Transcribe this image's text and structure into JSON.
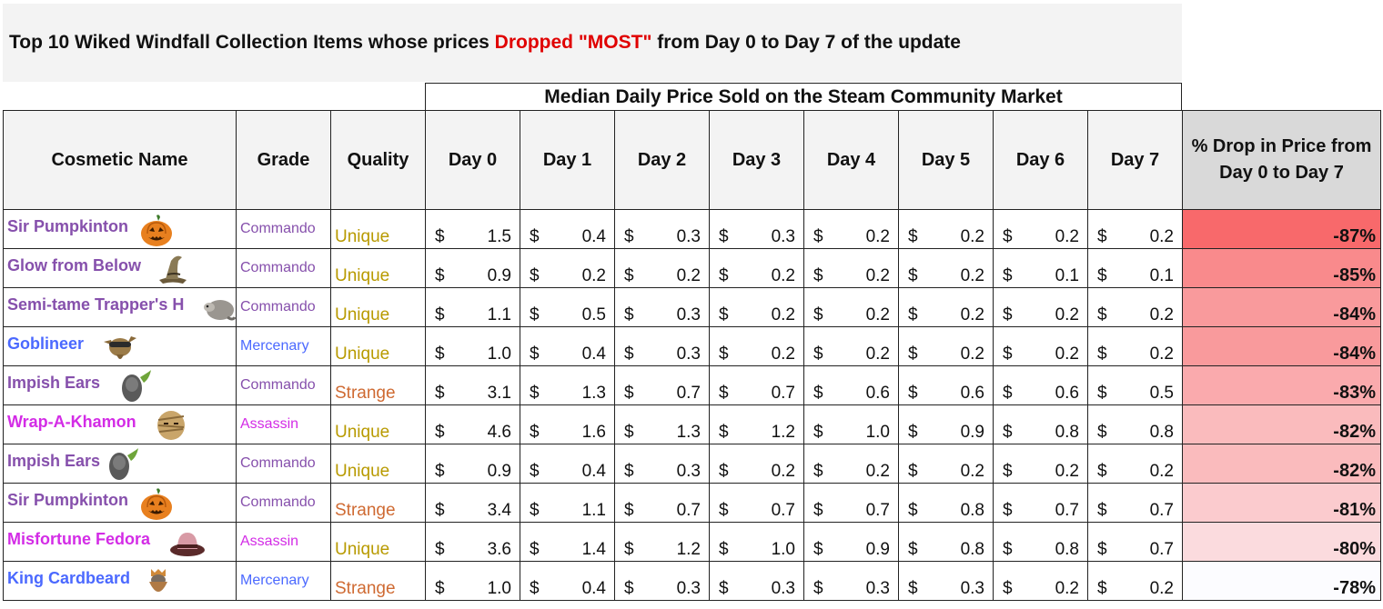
{
  "title": {
    "prefix": "Top 10 Wiked Windfall Collection Items whose prices ",
    "highlight": "Dropped \"MOST\"",
    "suffix": " from Day 0 to Day 7 of the update"
  },
  "group_header": "Median Daily Price Sold on the Steam Community Market",
  "columns": {
    "name": "Cosmetic Name",
    "grade": "Grade",
    "quality": "Quality",
    "days": [
      "Day 0",
      "Day 1",
      "Day 2",
      "Day 3",
      "Day 4",
      "Day 5",
      "Day 6",
      "Day 7"
    ],
    "pct_line1": "% Drop in Price from",
    "pct_line2": "Day 0 to Day 7"
  },
  "currency_symbol": "$",
  "colors": {
    "commando": "#8650ac",
    "assassin": "#d32ce6",
    "mercenary": "#4b69ff",
    "unique": "#b89a00",
    "strange": "#cf6a32",
    "highlight_red": "#e00000",
    "pct_strong": "#f8696b",
    "pct_weak": "#fcfcff"
  },
  "rows": [
    {
      "name": "Sir Pumpkinton",
      "icon": "pumpkin-icon",
      "grade": "Commando",
      "quality": "Unique",
      "prices": [
        "1.5",
        "0.4",
        "0.3",
        "0.3",
        "0.2",
        "0.2",
        "0.2",
        "0.2"
      ],
      "pct": "-87%",
      "pct_value": -87
    },
    {
      "name": "Glow from Below",
      "icon": "witch-hat-icon",
      "grade": "Commando",
      "quality": "Unique",
      "prices": [
        "0.9",
        "0.2",
        "0.2",
        "0.2",
        "0.2",
        "0.2",
        "0.1",
        "0.1"
      ],
      "pct": "-85%",
      "pct_value": -85
    },
    {
      "name": "Semi-tame Trapper's Hat",
      "display_name": "Semi-tame Trapper's H",
      "icon": "raccoon-hat-icon",
      "grade": "Commando",
      "quality": "Unique",
      "prices": [
        "1.1",
        "0.5",
        "0.3",
        "0.2",
        "0.2",
        "0.2",
        "0.2",
        "0.2"
      ],
      "pct": "-84%",
      "pct_value": -84
    },
    {
      "name": "Goblineer",
      "icon": "goblin-mask-icon",
      "grade": "Mercenary",
      "quality": "Unique",
      "prices": [
        "1.0",
        "0.4",
        "0.3",
        "0.2",
        "0.2",
        "0.2",
        "0.2",
        "0.2"
      ],
      "pct": "-84%",
      "pct_value": -84
    },
    {
      "name": "Impish Ears",
      "icon": "imp-ears-icon",
      "grade": "Commando",
      "quality": "Strange",
      "prices": [
        "3.1",
        "1.3",
        "0.7",
        "0.7",
        "0.6",
        "0.6",
        "0.6",
        "0.5"
      ],
      "pct": "-83%",
      "pct_value": -83
    },
    {
      "name": "Wrap-A-Khamon",
      "icon": "mummy-wrap-icon",
      "grade": "Assassin",
      "quality": "Unique",
      "prices": [
        "4.6",
        "1.6",
        "1.3",
        "1.2",
        "1.0",
        "0.9",
        "0.8",
        "0.8"
      ],
      "pct": "-82%",
      "pct_value": -82
    },
    {
      "name": "Impish Ears",
      "icon": "imp-ears-icon",
      "grade": "Commando",
      "quality": "Unique",
      "prices": [
        "0.9",
        "0.4",
        "0.3",
        "0.2",
        "0.2",
        "0.2",
        "0.2",
        "0.2"
      ],
      "pct": "-82%",
      "pct_value": -82
    },
    {
      "name": "Sir Pumpkinton",
      "icon": "pumpkin-icon",
      "grade": "Commando",
      "quality": "Strange",
      "prices": [
        "3.4",
        "1.1",
        "0.7",
        "0.7",
        "0.7",
        "0.8",
        "0.7",
        "0.7"
      ],
      "pct": "-81%",
      "pct_value": -81
    },
    {
      "name": "Misfortune Fedora",
      "icon": "fedora-icon",
      "grade": "Assassin",
      "quality": "Unique",
      "prices": [
        "3.6",
        "1.4",
        "1.2",
        "1.0",
        "0.9",
        "0.8",
        "0.8",
        "0.7"
      ],
      "pct": "-80%",
      "pct_value": -80
    },
    {
      "name": "King Cardbeard",
      "icon": "cardboard-beard-icon",
      "grade": "Mercenary",
      "quality": "Strange",
      "prices": [
        "1.0",
        "0.4",
        "0.3",
        "0.3",
        "0.3",
        "0.3",
        "0.2",
        "0.2"
      ],
      "pct": "-78%",
      "pct_value": -78
    }
  ]
}
